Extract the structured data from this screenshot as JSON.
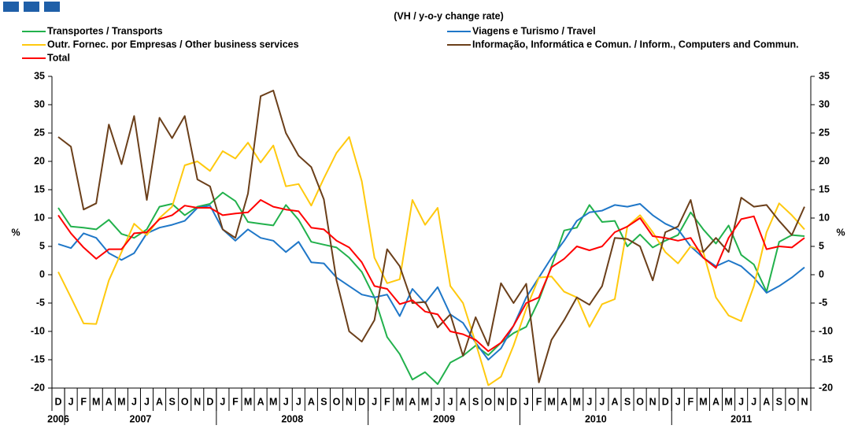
{
  "chart_data": {
    "type": "line",
    "subtitle": "(VH / y-o-y change rate)",
    "y_label": "%",
    "y2_label": "%",
    "categories": [
      "D",
      "J",
      "F",
      "M",
      "A",
      "M",
      "J",
      "J",
      "A",
      "S",
      "O",
      "N",
      "D",
      "J",
      "F",
      "M",
      "A",
      "M",
      "J",
      "J",
      "A",
      "S",
      "O",
      "N",
      "D",
      "J",
      "F",
      "M",
      "A",
      "M",
      "J",
      "J",
      "A",
      "S",
      "O",
      "N",
      "D",
      "J",
      "F",
      "M",
      "A",
      "M",
      "J",
      "J",
      "A",
      "S",
      "O",
      "N",
      "D",
      "J",
      "F",
      "M",
      "A",
      "M",
      "J",
      "J",
      "A",
      "S",
      "O",
      "N"
    ],
    "years": [
      "2006",
      "2007",
      "2008",
      "2009",
      "2010",
      "2011"
    ],
    "ylim": [
      -20,
      35
    ],
    "yticks": [
      -20,
      -15,
      -10,
      -5,
      0,
      5,
      10,
      15,
      20,
      25,
      30,
      35
    ],
    "y2lim": [
      -20,
      35
    ],
    "y2ticks": [
      -20,
      -15,
      -10,
      -5,
      0,
      5,
      10,
      15,
      20,
      25,
      30,
      35
    ],
    "series": [
      {
        "name": "Transportes / Transports",
        "color": "#22b14c",
        "values": [
          11.8,
          8.5,
          8.3,
          8,
          9.7,
          7.2,
          6.5,
          8,
          12,
          12.5,
          10.5,
          12,
          12.5,
          14.5,
          13,
          9.3,
          9,
          8.7,
          12.3,
          9.7,
          5.8,
          5.3,
          4.8,
          3,
          0.5,
          -4,
          -11,
          -14,
          -18.5,
          -17.2,
          -19.3,
          -15.5,
          -14.3,
          -12.5,
          -14.2,
          -12,
          -10.3,
          -9.2,
          -4.5,
          1.5,
          7.8,
          8.3,
          12.3,
          9.3,
          9.5,
          5,
          7.1,
          4.8,
          6,
          7,
          11,
          8,
          5.5,
          8.7,
          3.5,
          1.8,
          -3,
          5.8,
          7,
          6.8
        ]
      },
      {
        "name": "Viagens e Turismo / Travel",
        "color": "#1f77c8",
        "values": [
          5.4,
          4.7,
          7.3,
          6.5,
          3.8,
          2.6,
          3.8,
          7.3,
          8.3,
          8.8,
          9.5,
          11.8,
          12.2,
          8,
          6,
          8,
          6.5,
          6,
          4,
          5.8,
          2.2,
          2,
          -0.5,
          -2,
          -3.5,
          -4,
          -3.5,
          -7.3,
          -2.5,
          -5,
          -2.2,
          -7,
          -8.5,
          -12,
          -15,
          -13,
          -9,
          -4,
          -0.5,
          3,
          6,
          9.5,
          11,
          11.3,
          12.3,
          12,
          12.5,
          10.5,
          9,
          8,
          5,
          3,
          1.5,
          2.5,
          1.5,
          -0.5,
          -3.2,
          -2,
          -0.5,
          1.3
        ]
      },
      {
        "name": "Outr. Fornec. por Empresas / Other business services",
        "color": "#ffc90e",
        "values": [
          0.5,
          -4,
          -8.6,
          -8.7,
          -1,
          4,
          9,
          7,
          10,
          12,
          19.3,
          20,
          18.3,
          21.8,
          20.5,
          23.3,
          19.8,
          22.8,
          15.6,
          16,
          12.2,
          17,
          21.5,
          24.3,
          16.5,
          3,
          -1.5,
          -0.8,
          13.2,
          8.8,
          11.8,
          -2,
          -5,
          -12,
          -19.5,
          -18,
          -12.5,
          -6,
          -0.5,
          -0.3,
          -3,
          -4,
          -9.2,
          -5.2,
          -4.3,
          8.5,
          10.5,
          7.5,
          4,
          2,
          5,
          4,
          -4,
          -7.2,
          -8.2,
          -2,
          7.5,
          12.6,
          10.5,
          8
        ]
      },
      {
        "name": "Informação, Informática e Comun. / Inform., Computers and Commun.",
        "color": "#6b3f1a",
        "values": [
          24.3,
          22.6,
          11.5,
          12.6,
          26.5,
          19.5,
          28,
          13.2,
          27.7,
          24.1,
          28,
          16.8,
          15.6,
          8,
          6.5,
          14.3,
          31.5,
          32.5,
          25,
          21,
          19,
          13.3,
          -1,
          -10,
          -11.8,
          -8,
          4.5,
          1.5,
          -5,
          -4.8,
          -9.3,
          -7,
          -14.3,
          -7.5,
          -12.5,
          -1.5,
          -5,
          -1.6,
          -19,
          -11.5,
          -8,
          -4,
          -5.3,
          -2,
          6.5,
          6.3,
          5,
          -1,
          7.5,
          8.5,
          13.2,
          4,
          6.5,
          4,
          13.6,
          12,
          12.3,
          9.5,
          7,
          12
        ]
      },
      {
        "name": "Total",
        "color": "#ff0000",
        "values": [
          10.5,
          7.3,
          4.8,
          2.8,
          4.5,
          4.5,
          7.3,
          7.5,
          9.8,
          10.5,
          12.2,
          11.8,
          11.8,
          10.5,
          10.8,
          11,
          13.2,
          12,
          11.5,
          11.2,
          8.3,
          8,
          6,
          4.8,
          2.2,
          -2,
          -2.5,
          -5.2,
          -4.5,
          -6.5,
          -7,
          -10,
          -10.5,
          -11.5,
          -13.5,
          -12,
          -9,
          -5,
          -4,
          1.3,
          2.8,
          5,
          4.3,
          5,
          7.5,
          8.5,
          10,
          6.8,
          6.5,
          6,
          6.5,
          3,
          1.2,
          6.5,
          9.8,
          10.3,
          4.5,
          5,
          4.8,
          6.5
        ]
      }
    ]
  }
}
